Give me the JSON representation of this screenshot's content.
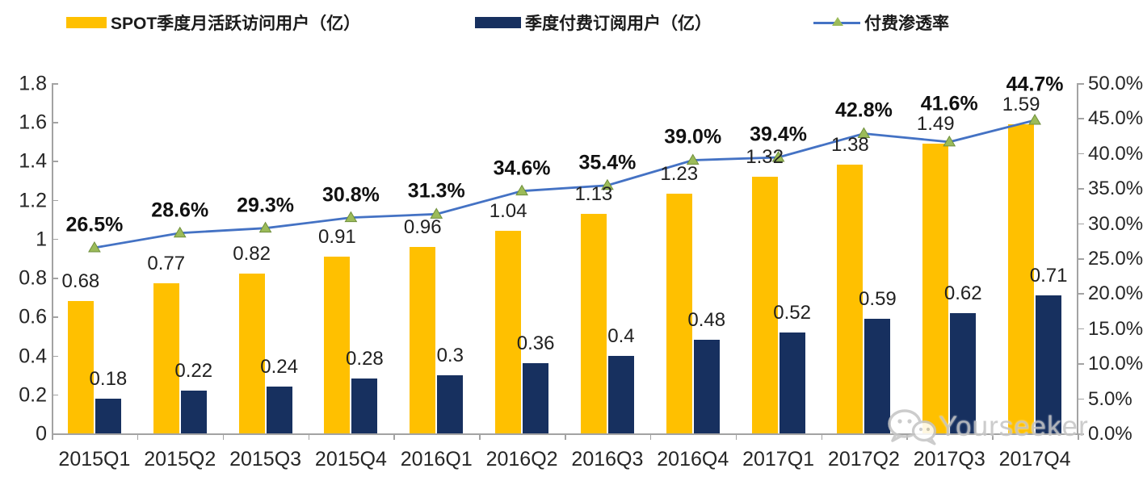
{
  "legend": {
    "items": [
      {
        "label": "SPOT季度月活跃访问用户（亿）",
        "swatch": "yellow-bar"
      },
      {
        "label": "季度付费订阅用户（亿）",
        "swatch": "navy-bar"
      },
      {
        "label": "付费渗透率",
        "swatch": "line-marker"
      }
    ]
  },
  "watermark": {
    "text": "Yourseeker",
    "icon": "wechat-icon"
  },
  "colors": {
    "mau_bar": "#FFC000",
    "subs_bar": "#17305F",
    "penetration_line": "#4472C4",
    "marker_fill": "#9BBB59",
    "marker_stroke": "#6f8f3c",
    "axis": "#a3a3a3",
    "label_text": "#212121"
  },
  "chart_data": {
    "type": "bar",
    "title": "",
    "categories": [
      "2015Q1",
      "2015Q2",
      "2015Q3",
      "2015Q4",
      "2016Q1",
      "2016Q2",
      "2016Q3",
      "2016Q4",
      "2017Q1",
      "2017Q2",
      "2017Q3",
      "2017Q4"
    ],
    "series": [
      {
        "name": "SPOT季度月活跃访问用户（亿）",
        "type": "bar",
        "axis": "left",
        "color": "#FFC000",
        "values": [
          0.68,
          0.77,
          0.82,
          0.91,
          0.96,
          1.04,
          1.13,
          1.23,
          1.32,
          1.38,
          1.49,
          1.59
        ],
        "labels": [
          "0.68",
          "0.77",
          "0.82",
          "0.91",
          "0.96",
          "1.04",
          "1.13",
          "1.23",
          "1.32",
          "1.38",
          "1.49",
          "1.59"
        ]
      },
      {
        "name": "季度付费订阅用户（亿）",
        "type": "bar",
        "axis": "left",
        "color": "#17305F",
        "values": [
          0.18,
          0.22,
          0.24,
          0.28,
          0.3,
          0.36,
          0.4,
          0.48,
          0.52,
          0.59,
          0.62,
          0.71
        ],
        "labels": [
          "0.18",
          "0.22",
          "0.24",
          "0.28",
          "0.3",
          "0.36",
          "0.4",
          "0.48",
          "0.52",
          "0.59",
          "0.62",
          "0.71"
        ]
      },
      {
        "name": "付费渗透率",
        "type": "line",
        "axis": "right",
        "color": "#4472C4",
        "marker": "triangle",
        "marker_color": "#9BBB59",
        "values": [
          26.5,
          28.6,
          29.3,
          30.8,
          31.3,
          34.6,
          35.4,
          39.0,
          39.4,
          42.8,
          41.6,
          44.7
        ],
        "labels": [
          "26.5%",
          "28.6%",
          "29.3%",
          "30.8%",
          "31.3%",
          "34.6%",
          "35.4%",
          "39.0%",
          "39.4%",
          "42.8%",
          "41.6%",
          "44.7%"
        ]
      }
    ],
    "left_axis": {
      "min": 0,
      "max": 1.8,
      "step": 0.2,
      "tick_labels": [
        "0",
        "0.2",
        "0.4",
        "0.6",
        "0.8",
        "1",
        "1.2",
        "1.4",
        "1.6",
        "1.8"
      ]
    },
    "right_axis": {
      "min": 0,
      "max": 50,
      "step": 5,
      "tick_labels": [
        "0.0%",
        "5.0%",
        "10.0%",
        "15.0%",
        "20.0%",
        "25.0%",
        "30.0%",
        "35.0%",
        "40.0%",
        "45.0%",
        "50.0%"
      ]
    },
    "grid": false,
    "legend_position": "top"
  }
}
